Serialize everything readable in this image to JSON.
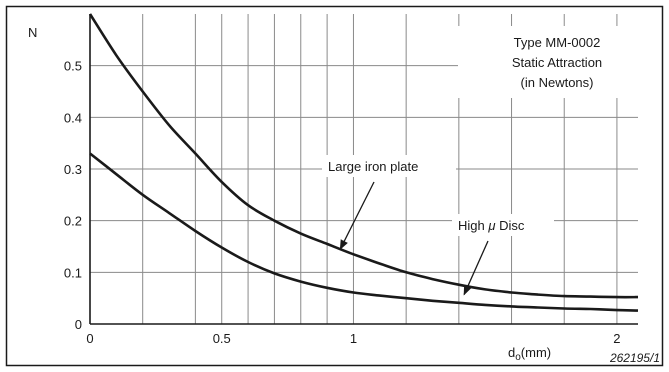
{
  "chart_data": {
    "type": "line",
    "title": "Type MM-0002\nStatic Attraction\n(in Newtons)",
    "ylabel": "N",
    "xlabel_main": "d",
    "xlabel_sub": "o",
    "xlabel_unit": "(mm)",
    "figure_id": "262195/1",
    "xlim": [
      0,
      2.08
    ],
    "ylim": [
      0,
      0.6
    ],
    "x_ticks": [
      {
        "value": 0,
        "label": "0"
      },
      {
        "value": 0.5,
        "label": "0.5"
      },
      {
        "value": 1,
        "label": "1"
      },
      {
        "value": 2,
        "label": "2"
      }
    ],
    "y_ticks": [
      {
        "value": 0,
        "label": "0"
      },
      {
        "value": 0.1,
        "label": "0.1"
      },
      {
        "value": 0.2,
        "label": "0.2"
      },
      {
        "value": 0.3,
        "label": "0.3"
      },
      {
        "value": 0.4,
        "label": "0.4"
      },
      {
        "value": 0.5,
        "label": "0.5"
      }
    ],
    "x_grid": [
      0.2,
      0.4,
      0.6,
      0.7,
      0.8,
      0.9,
      1.2,
      1.4,
      1.6,
      1.8
    ],
    "y_grid": [
      0.1,
      0.2,
      0.3,
      0.4,
      0.5
    ],
    "series": [
      {
        "name": "Large iron plate",
        "x": [
          0,
          0.1,
          0.2,
          0.3,
          0.4,
          0.5,
          0.6,
          0.7,
          0.8,
          0.9,
          1.0,
          1.1,
          1.2,
          1.3,
          1.4,
          1.5,
          1.6,
          1.7,
          1.8,
          1.9,
          2.0,
          2.08
        ],
        "y": [
          0.6,
          0.52,
          0.45,
          0.385,
          0.33,
          0.275,
          0.23,
          0.2,
          0.175,
          0.155,
          0.135,
          0.117,
          0.1,
          0.087,
          0.076,
          0.067,
          0.061,
          0.057,
          0.054,
          0.053,
          0.052,
          0.052
        ]
      },
      {
        "name": "High μ Disc",
        "x": [
          0,
          0.1,
          0.2,
          0.3,
          0.4,
          0.5,
          0.6,
          0.7,
          0.8,
          0.9,
          1.0,
          1.1,
          1.2,
          1.3,
          1.4,
          1.5,
          1.6,
          1.7,
          1.8,
          1.9,
          2.0,
          2.08
        ],
        "y": [
          0.33,
          0.29,
          0.25,
          0.215,
          0.18,
          0.148,
          0.12,
          0.098,
          0.082,
          0.07,
          0.061,
          0.055,
          0.05,
          0.045,
          0.041,
          0.037,
          0.034,
          0.032,
          0.03,
          0.029,
          0.027,
          0.026
        ]
      }
    ],
    "annotations": [
      {
        "text": "Large iron plate",
        "points_to": {
          "x": 0.95,
          "y": 0.145
        }
      },
      {
        "text_main": "High ",
        "text_mu": "μ",
        "text_rest": " Disc",
        "points_to": {
          "x": 1.42,
          "y": 0.057
        }
      }
    ],
    "grid": true,
    "legend": "none"
  }
}
